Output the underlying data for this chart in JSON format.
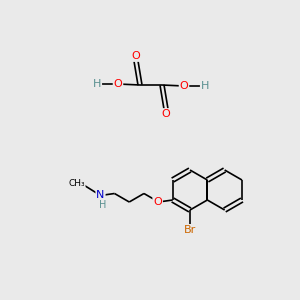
{
  "bg_color": "#eaeaea",
  "atom_colors": {
    "C": "#000000",
    "H": "#5a9090",
    "O": "#ff0000",
    "N": "#0000cc",
    "Br": "#cc6600"
  },
  "figsize": [
    3.0,
    3.0
  ],
  "dpi": 100
}
